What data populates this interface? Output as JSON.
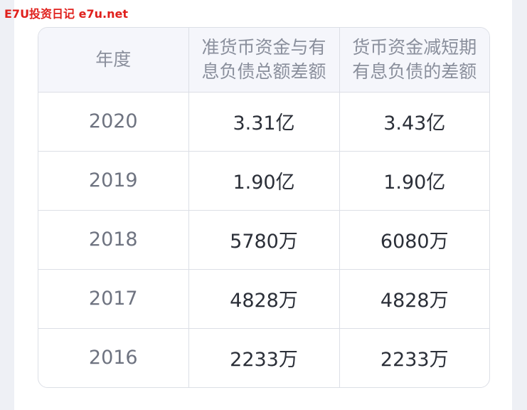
{
  "watermark": "E7U投资日记 e7u.net",
  "table": {
    "headers": [
      "年度",
      "准货币资金与有息负债总额差额",
      "货币资金减短期有息负债的差额"
    ],
    "rows": [
      {
        "year": "2020",
        "quasi_cash_minus_debt": "3.31亿",
        "cash_minus_short_debt": "3.43亿"
      },
      {
        "year": "2019",
        "quasi_cash_minus_debt": "1.90亿",
        "cash_minus_short_debt": "1.90亿"
      },
      {
        "year": "2018",
        "quasi_cash_minus_debt": "5780万",
        "cash_minus_short_debt": "6080万"
      },
      {
        "year": "2017",
        "quasi_cash_minus_debt": "4828万",
        "cash_minus_short_debt": "4828万"
      },
      {
        "year": "2016",
        "quasi_cash_minus_debt": "2233万",
        "cash_minus_short_debt": "2233万"
      }
    ]
  }
}
